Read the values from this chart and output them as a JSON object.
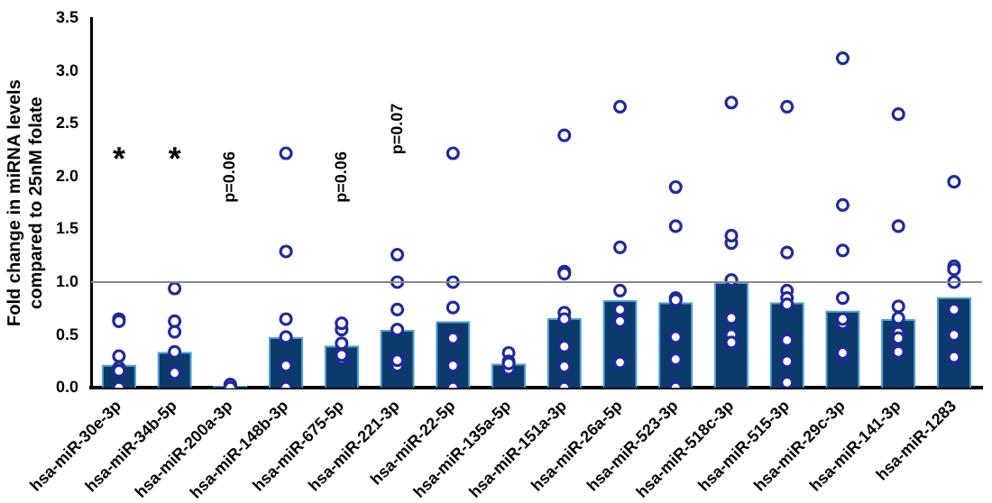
{
  "chart_data": {
    "type": "bar",
    "ylabel": "Fold change in miRNA levels\ncompared to 25nM folate",
    "categories": [
      "hsa-miR-30e-3p",
      "hsa-miR-34b-5p",
      "hsa-miR-200a-3p",
      "hsa-miR-148b-3p",
      "hsa-miR-675-5p",
      "hsa-miR-221-3p",
      "hsa-miR-22-5p",
      "hsa-miR-135a-5p",
      "hsa-miR-151a-3p",
      "hsa-miR-26a-5p",
      "hsa-miR-523-3p",
      "hsa-miR-518c-3p",
      "hsa-miR-515-3p",
      "hsa-miR-29c-3p",
      "hsa-miR-141-3p",
      "hsa-miR-1283"
    ],
    "series": [
      {
        "color": "#0b3a6b",
        "values": [
          0.22,
          0.34,
          0.02,
          0.48,
          0.4,
          0.55,
          0.63,
          0.23,
          0.66,
          0.83,
          0.81,
          1.0,
          0.81,
          0.73,
          0.65,
          0.86
        ]
      },
      {
        "type": "scatter",
        "color": "#1f2a9c",
        "marker": "circle",
        "x": [
          "hsa-miR-30e-3p",
          "hsa-miR-30e-3p",
          "hsa-miR-30e-3p",
          "hsa-miR-30e-3p",
          "hsa-miR-30e-3p",
          "hsa-miR-30e-3p",
          "hsa-miR-34b-5p",
          "hsa-miR-34b-5p",
          "hsa-miR-34b-5p",
          "hsa-miR-34b-5p",
          "hsa-miR-34b-5p",
          "hsa-miR-34b-5p",
          "hsa-miR-200a-3p",
          "hsa-miR-200a-3p",
          "hsa-miR-200a-3p",
          "hsa-miR-200a-3p",
          "hsa-miR-200a-3p",
          "hsa-miR-148b-3p",
          "hsa-miR-148b-3p",
          "hsa-miR-148b-3p",
          "hsa-miR-148b-3p",
          "hsa-miR-148b-3p",
          "hsa-miR-148b-3p",
          "hsa-miR-675-5p",
          "hsa-miR-675-5p",
          "hsa-miR-675-5p",
          "hsa-miR-675-5p",
          "hsa-miR-675-5p",
          "hsa-miR-221-3p",
          "hsa-miR-221-3p",
          "hsa-miR-221-3p",
          "hsa-miR-221-3p",
          "hsa-miR-221-3p",
          "hsa-miR-221-3p",
          "hsa-miR-22-5p",
          "hsa-miR-22-5p",
          "hsa-miR-22-5p",
          "hsa-miR-22-5p",
          "hsa-miR-22-5p",
          "hsa-miR-22-5p",
          "hsa-miR-135a-5p",
          "hsa-miR-135a-5p",
          "hsa-miR-135a-5p",
          "hsa-miR-135a-5p",
          "hsa-miR-151a-3p",
          "hsa-miR-151a-3p",
          "hsa-miR-151a-3p",
          "hsa-miR-151a-3p",
          "hsa-miR-151a-3p",
          "hsa-miR-151a-3p",
          "hsa-miR-151a-3p",
          "hsa-miR-151a-3p",
          "hsa-miR-26a-5p",
          "hsa-miR-26a-5p",
          "hsa-miR-26a-5p",
          "hsa-miR-26a-5p",
          "hsa-miR-26a-5p",
          "hsa-miR-26a-5p",
          "hsa-miR-523-3p",
          "hsa-miR-523-3p",
          "hsa-miR-523-3p",
          "hsa-miR-523-3p",
          "hsa-miR-523-3p",
          "hsa-miR-523-3p",
          "hsa-miR-523-3p",
          "hsa-miR-518c-3p",
          "hsa-miR-518c-3p",
          "hsa-miR-518c-3p",
          "hsa-miR-518c-3p",
          "hsa-miR-518c-3p",
          "hsa-miR-518c-3p",
          "hsa-miR-518c-3p",
          "hsa-miR-515-3p",
          "hsa-miR-515-3p",
          "hsa-miR-515-3p",
          "hsa-miR-515-3p",
          "hsa-miR-515-3p",
          "hsa-miR-515-3p",
          "hsa-miR-515-3p",
          "hsa-miR-515-3p",
          "hsa-miR-29c-3p",
          "hsa-miR-29c-3p",
          "hsa-miR-29c-3p",
          "hsa-miR-29c-3p",
          "hsa-miR-29c-3p",
          "hsa-miR-29c-3p",
          "hsa-miR-29c-3p",
          "hsa-miR-29c-3p",
          "hsa-miR-141-3p",
          "hsa-miR-141-3p",
          "hsa-miR-141-3p",
          "hsa-miR-141-3p",
          "hsa-miR-141-3p",
          "hsa-miR-141-3p",
          "hsa-miR-141-3p",
          "hsa-miR-1283",
          "hsa-miR-1283",
          "hsa-miR-1283",
          "hsa-miR-1283",
          "hsa-miR-1283",
          "hsa-miR-1283",
          "hsa-miR-1283",
          "hsa-miR-1283"
        ],
        "values": [
          0.65,
          0.19,
          0,
          0.63,
          0.3,
          0.16,
          0.63,
          0.94,
          0.53,
          0.34,
          0.15,
          0.14,
          0.01,
          0.03,
          0,
          0,
          0,
          2.22,
          1.29,
          0.65,
          0.48,
          0.21,
          0,
          0.55,
          0.42,
          0.28,
          0.61,
          0.31,
          1.26,
          1.0,
          0.74,
          0.55,
          0.21,
          0.26,
          2.22,
          1.0,
          0.76,
          0.47,
          0.21,
          0,
          0.33,
          0.18,
          0.25,
          0.23,
          2.39,
          1.1,
          1.08,
          0.71,
          0.65,
          0.39,
          0.2,
          0,
          2.66,
          1.33,
          0.92,
          0.74,
          0.63,
          0.24,
          1.9,
          1.53,
          0.85,
          0.83,
          0.48,
          0.27,
          0,
          2.7,
          1.37,
          1.44,
          1.02,
          0.66,
          0.5,
          0.43,
          2.66,
          1.28,
          0.92,
          0.85,
          0.79,
          0.45,
          0.25,
          0.05,
          3.12,
          1.73,
          1.3,
          0.85,
          0.61,
          0.65,
          0.31,
          0.33,
          2.59,
          1.53,
          0.77,
          0.66,
          0.52,
          0.47,
          0.34,
          1.95,
          1.15,
          1.12,
          1.0,
          0.74,
          0.5,
          0.28,
          0.29
        ]
      }
    ],
    "ylim": [
      0,
      3.5
    ],
    "yticks": [
      {
        "value": 0,
        "label": "0.0"
      },
      0.5,
      {
        "value": 1,
        "label": "1.0"
      },
      1.5,
      {
        "value": 2,
        "label": "2.0"
      },
      2.5,
      {
        "value": 3,
        "label": "3.0"
      },
      3.5
    ],
    "ref_lines": [
      {
        "axis": "y",
        "value": 1.0,
        "color": "#888888"
      }
    ],
    "annotations": [
      "*",
      "*",
      "p=0.06",
      "p=0.06",
      "p=0.07"
    ],
    "grid": false,
    "legend": false
  }
}
